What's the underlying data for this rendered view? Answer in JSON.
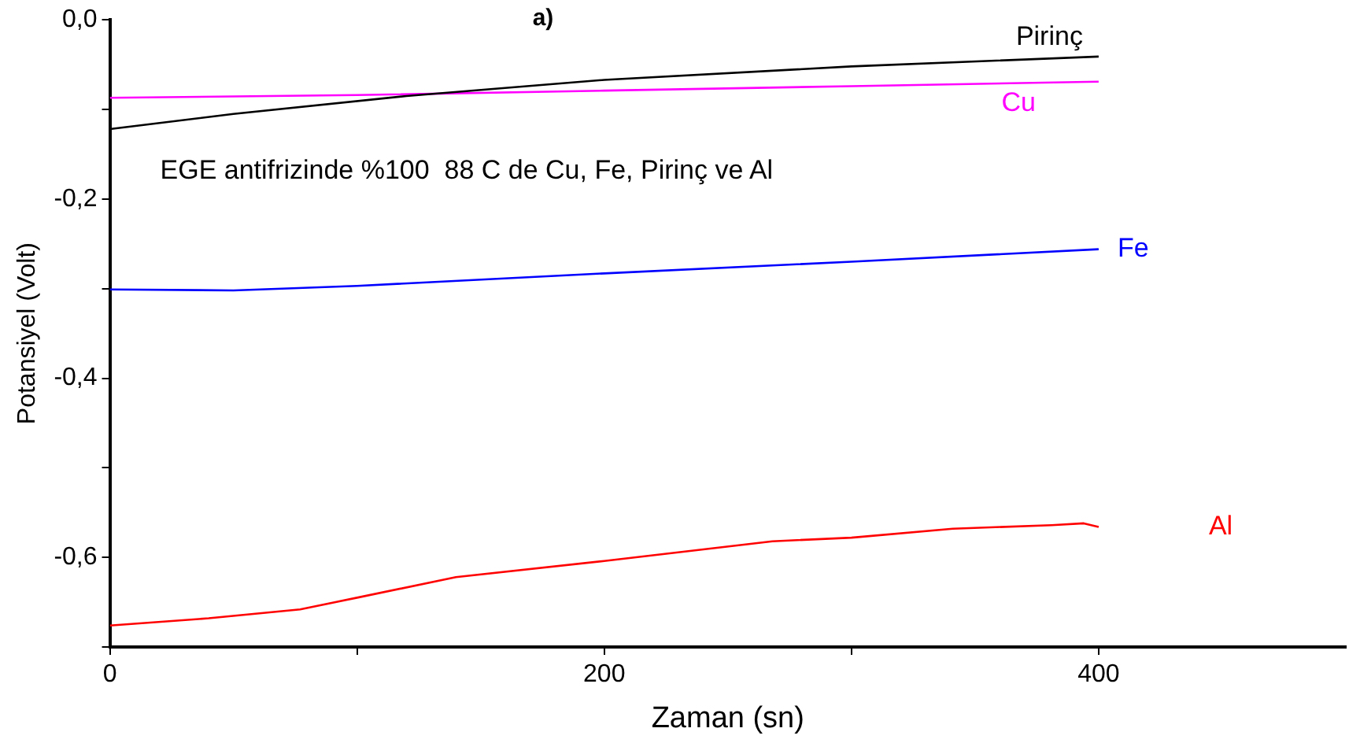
{
  "chart_data": {
    "type": "line",
    "title": "a)",
    "xlabel": "Zaman (sn)",
    "ylabel": "Potansiyel (Volt)",
    "annotations": [
      "EGE antifrizinde %100  88 C de Cu, Fe, Pirinç ve Al"
    ],
    "xlim": [
      0,
      500
    ],
    "xticks": [
      0,
      {
        "value": 100,
        "label": null
      },
      200,
      {
        "value": 300,
        "label": null
      },
      400
    ],
    "ylim": [
      -0.7,
      0
    ],
    "yticks": [
      {
        "value": 0,
        "label": "0,0"
      },
      {
        "value": -0.1,
        "label": null
      },
      {
        "value": -0.2,
        "label": "-0,2"
      },
      {
        "value": -0.3,
        "label": null
      },
      {
        "value": -0.4,
        "label": "-0,4"
      },
      {
        "value": -0.5,
        "label": null
      },
      {
        "value": -0.6,
        "label": "-0,6"
      },
      {
        "value": -0.7,
        "label": null
      }
    ],
    "grid": false,
    "legend": false,
    "marker": "none",
    "line_style": "solid",
    "series": [
      {
        "name": "Pirinç",
        "color": "#000000",
        "x": [
          0,
          50,
          120,
          200,
          300,
          400
        ],
        "values": [
          -0.122,
          -0.105,
          -0.085,
          -0.067,
          -0.052,
          -0.041
        ]
      },
      {
        "name": "Cu",
        "color": "#ff00ff",
        "x": [
          0,
          100,
          200,
          300,
          400
        ],
        "values": [
          -0.087,
          -0.084,
          -0.079,
          -0.074,
          -0.069
        ]
      },
      {
        "name": "Fe",
        "color": "#0000ff",
        "x": [
          0,
          50,
          100,
          200,
          300,
          400
        ],
        "values": [
          -0.301,
          -0.302,
          -0.297,
          -0.283,
          -0.27,
          -0.256
        ]
      },
      {
        "name": "Al",
        "color": "#ff0000",
        "x": [
          0,
          40,
          77,
          100,
          140,
          200,
          268,
          300,
          341,
          381,
          394,
          400
        ],
        "values": [
          -0.676,
          -0.668,
          -0.658,
          -0.645,
          -0.622,
          -0.604,
          -0.582,
          -0.578,
          -0.568,
          -0.564,
          -0.562,
          -0.566
        ]
      }
    ]
  }
}
